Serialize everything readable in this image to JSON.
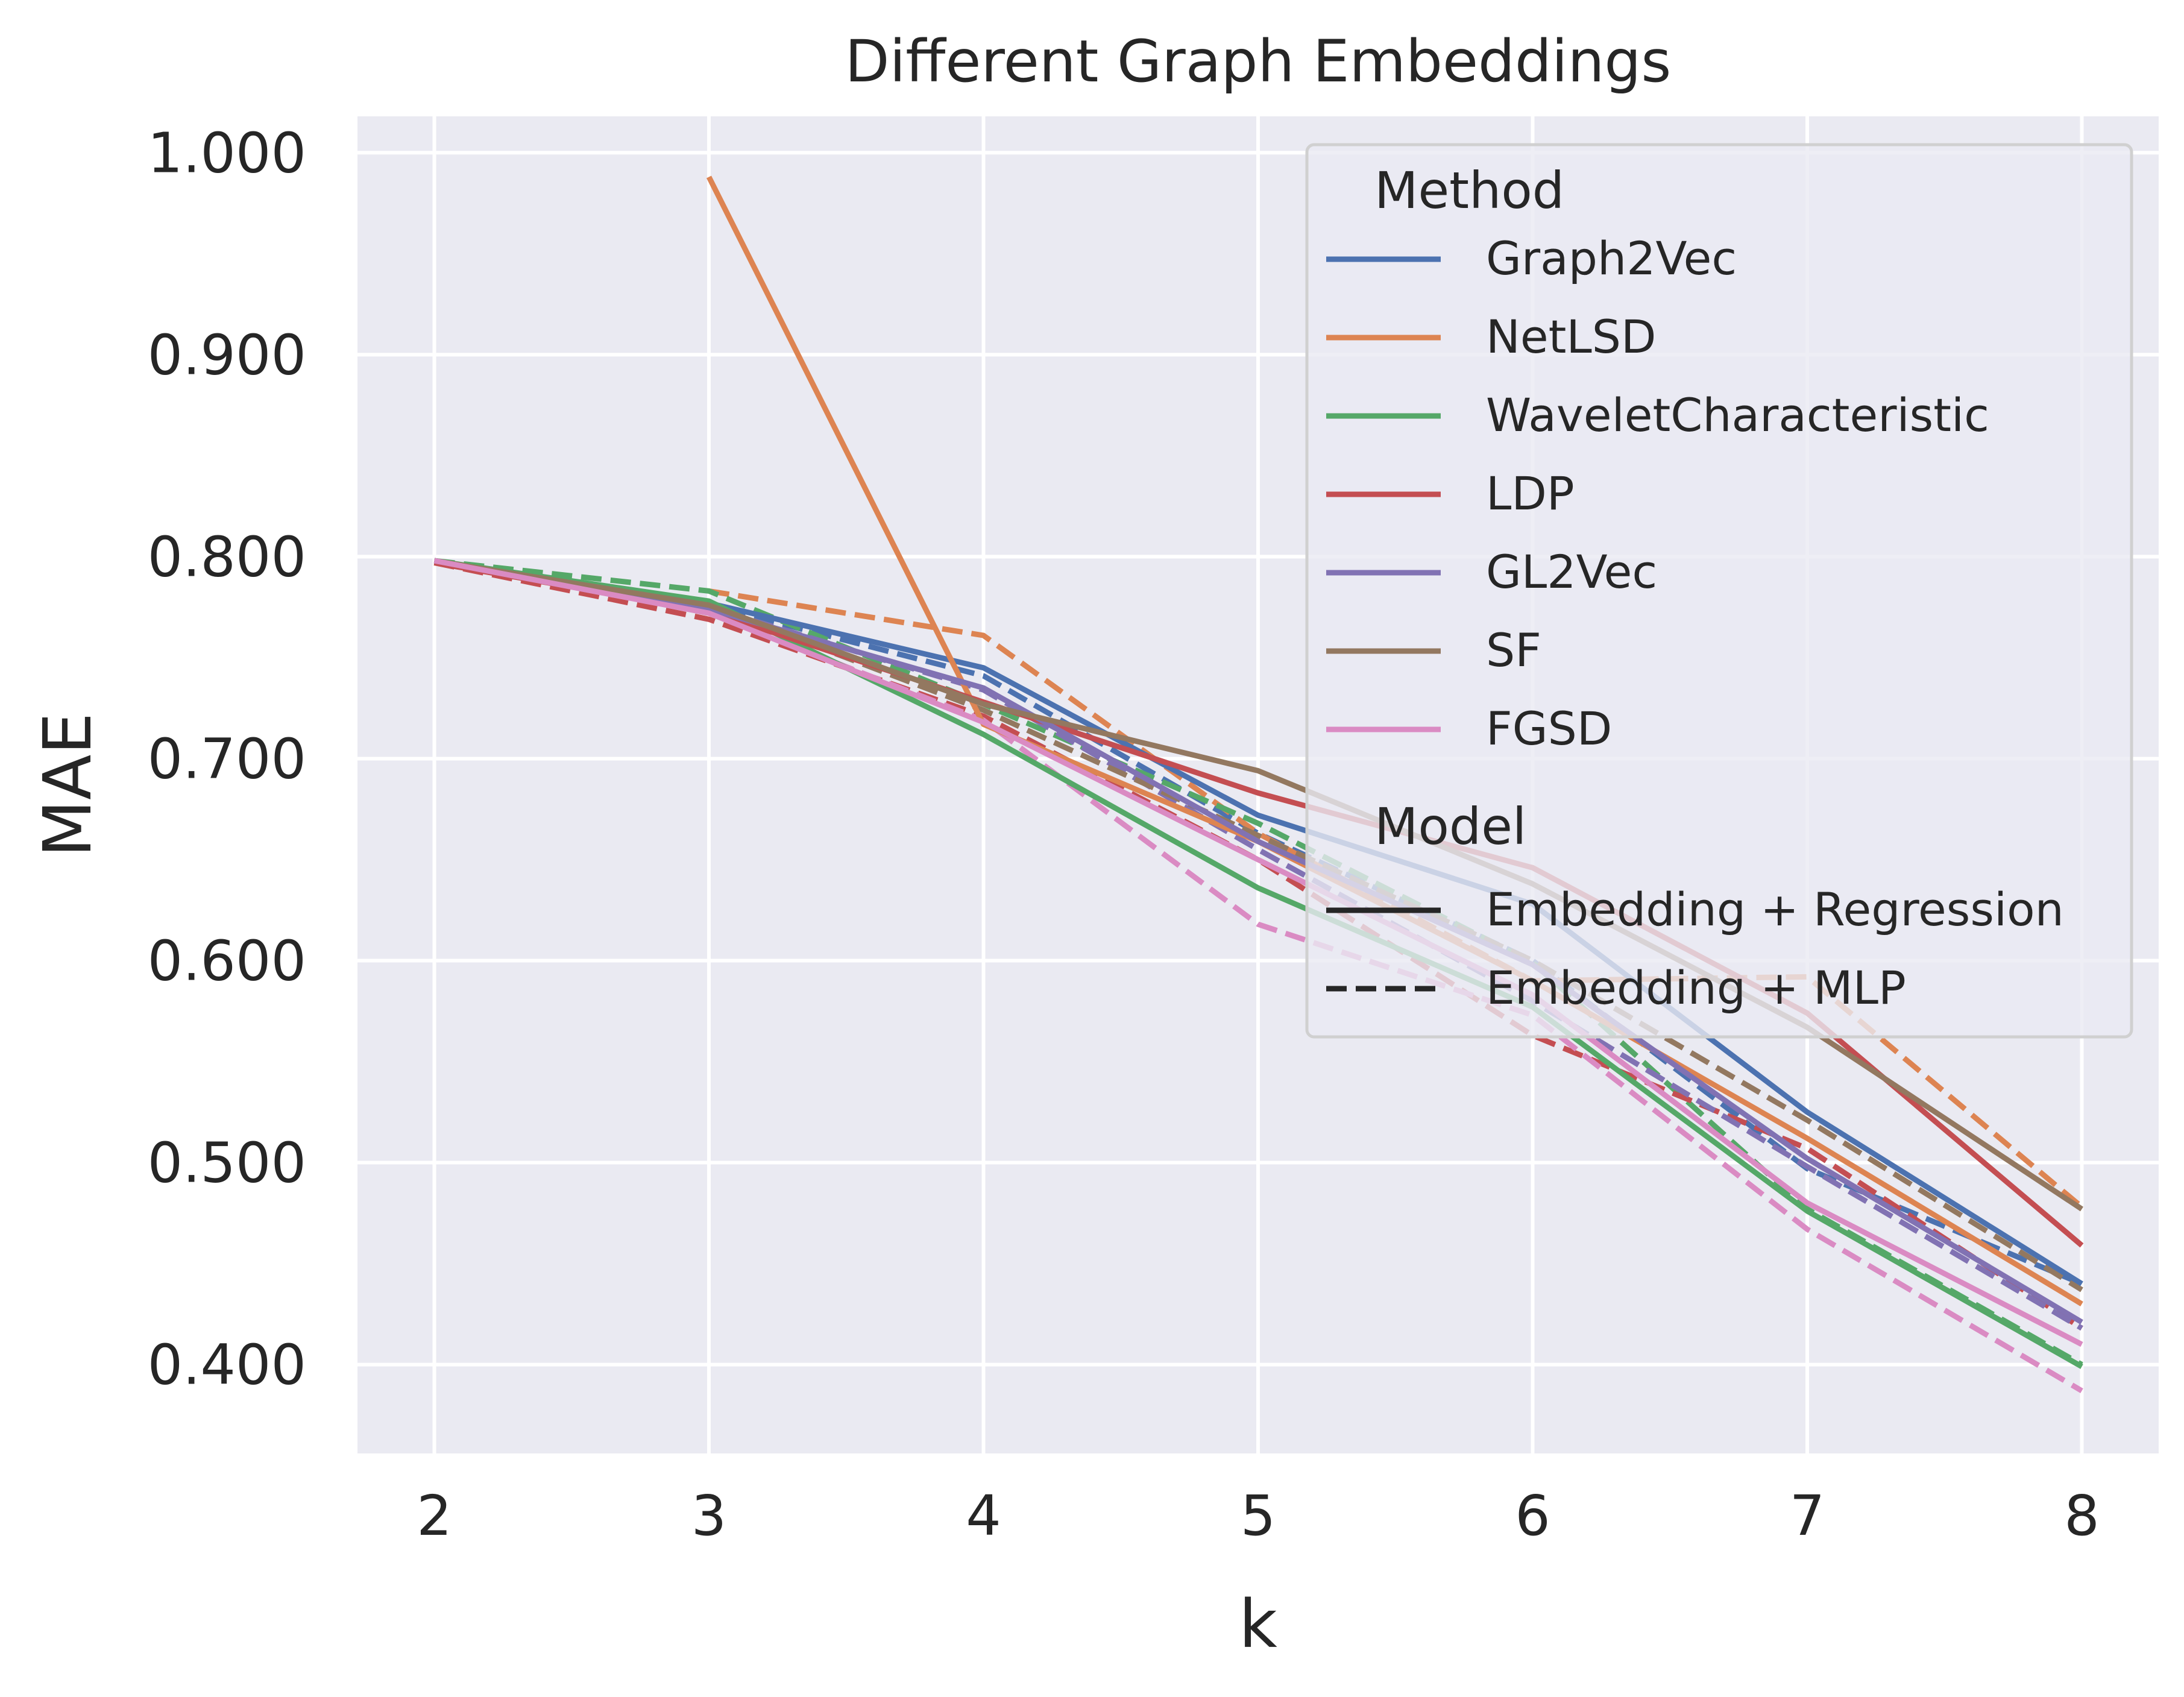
{
  "chart_data": {
    "type": "line",
    "title": "Different Graph Embeddings",
    "xlabel": "k",
    "ylabel": "MAE",
    "x": [
      2,
      3,
      4,
      5,
      6,
      7,
      8
    ],
    "xticks": [
      "2",
      "3",
      "4",
      "5",
      "6",
      "7",
      "8"
    ],
    "yticks": [
      "0.400",
      "0.500",
      "0.600",
      "0.700",
      "0.800",
      "0.900",
      "1.000"
    ],
    "ytick_values": [
      0.4,
      0.5,
      0.6,
      0.7,
      0.8,
      0.9,
      1.0
    ],
    "xlim": [
      1.72,
      8.28
    ],
    "ylim": [
      0.356,
      1.018
    ],
    "grid": true,
    "legend_position": "upper-right",
    "legend": {
      "method_title": "Method",
      "model_title": "Model"
    },
    "models": [
      {
        "name": "Embedding + Regression",
        "dash": "solid"
      },
      {
        "name": "Embedding + MLP",
        "dash": "dashed"
      }
    ],
    "methods": [
      {
        "name": "Graph2Vec",
        "color": "#4c72b0",
        "regression": [
          0.798,
          0.777,
          0.745,
          0.672,
          0.628,
          0.525,
          0.44
        ],
        "mlp": [
          0.798,
          0.776,
          0.741,
          0.663,
          0.6,
          0.497,
          0.44
        ]
      },
      {
        "name": "NetLSD",
        "color": "#dd8452",
        "regression": [
          null,
          0.988,
          0.717,
          0.659,
          0.59,
          0.512,
          0.43
        ],
        "mlp": [
          null,
          0.783,
          0.761,
          0.663,
          0.59,
          0.592,
          0.478
        ]
      },
      {
        "name": "WaveletCharacteristic",
        "color": "#55a868",
        "regression": [
          0.798,
          0.778,
          0.712,
          0.636,
          0.577,
          0.476,
          0.399
        ],
        "mlp": [
          0.798,
          0.783,
          0.727,
          0.668,
          0.599,
          0.477,
          0.4
        ]
      },
      {
        "name": "LDP",
        "color": "#c44e52",
        "regression": [
          0.797,
          0.773,
          0.728,
          0.683,
          0.646,
          0.574,
          0.459
        ],
        "mlp": [
          0.797,
          0.769,
          0.721,
          0.65,
          0.563,
          0.507,
          0.418
        ]
      },
      {
        "name": "GL2Vec",
        "color": "#8172b3",
        "regression": [
          0.798,
          0.774,
          0.735,
          0.659,
          0.598,
          0.502,
          0.421
        ],
        "mlp": [
          0.798,
          0.775,
          0.734,
          0.655,
          0.58,
          0.498,
          0.418
        ]
      },
      {
        "name": "SF",
        "color": "#937860",
        "regression": [
          0.798,
          0.776,
          0.727,
          0.694,
          0.638,
          0.567,
          0.477
        ],
        "mlp": [
          0.798,
          0.776,
          0.724,
          0.662,
          0.6,
          0.521,
          0.437
        ]
      },
      {
        "name": "FGSD",
        "color": "#da8bc3",
        "regression": [
          0.798,
          0.772,
          0.718,
          0.65,
          0.583,
          0.48,
          0.41
        ],
        "mlp": [
          0.798,
          0.772,
          0.719,
          0.618,
          0.573,
          0.467,
          0.387
        ]
      }
    ]
  }
}
